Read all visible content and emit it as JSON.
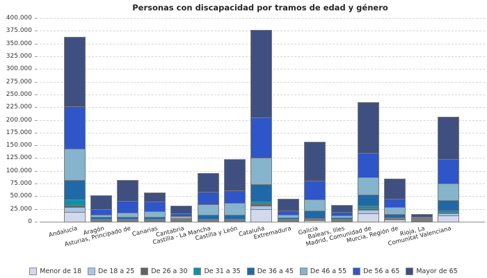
{
  "chart_data": {
    "type": "bar",
    "stacked": true,
    "title": "Personas con discapacidad por tramos de edad y género",
    "xlabel": "",
    "ylabel": "",
    "legend_position": "bottom",
    "grid": "horizontal-dashed",
    "y_axis": {
      "min": 0,
      "max": 400000,
      "step": 25000,
      "tick_labels": [
        "0",
        "25.000",
        "50.000",
        "75.000",
        "100.000",
        "125.000",
        "150.000",
        "175.000",
        "200.000",
        "225.000",
        "250.000",
        "275.000",
        "300.000",
        "325.000",
        "350.000",
        "375.000",
        "400.000"
      ]
    },
    "categories": [
      "Andalucía",
      "Aragón",
      "Asturias, Principado de",
      "Canarias",
      "Cantabria",
      "Castilla - La Mancha",
      "Castilla y León",
      "Cataluña",
      "Extremadura",
      "Galicia",
      "Balears, Illes",
      "Madrid, Comunidad de",
      "Murcia, Región de",
      "Rioja, La",
      "Comunitat Valenciana"
    ],
    "series": [
      {
        "name": "Menor de 18",
        "color": "#d3d9ed",
        "values": [
          21000,
          3000,
          2700,
          3200,
          1400,
          3000,
          2500,
          26000,
          1400,
          3500,
          1000,
          18000,
          5000,
          800,
          13200
        ]
      },
      {
        "name": "De 18 a 25",
        "color": "#a8c6e8",
        "values": [
          11000,
          3000,
          2300,
          2700,
          1300,
          3000,
          2500,
          8000,
          1800,
          2500,
          1300,
          8000,
          3200,
          800,
          5500
        ]
      },
      {
        "name": "De 26 a 30",
        "color": "#5f6466",
        "values": [
          5500,
          2500,
          1800,
          2300,
          1400,
          2000,
          2800,
          5000,
          1400,
          2500,
          1400,
          4500,
          2300,
          800,
          3100
        ]
      },
      {
        "name": "De 31 a 35",
        "color": "#1191a8",
        "values": [
          11500,
          2500,
          2200,
          2300,
          1800,
          2500,
          3200,
          6500,
          1800,
          3500,
          1800,
          6000,
          3200,
          800,
          5100
        ]
      },
      {
        "name": "De 36 a 45",
        "color": "#2069a9",
        "values": [
          40000,
          5000,
          5000,
          4900,
          2700,
          8500,
          9500,
          34500,
          4100,
          16500,
          3600,
          23500,
          7700,
          1400,
          22700
        ]
      },
      {
        "name": "De 46 a 55",
        "color": "#86b4cc",
        "values": [
          62500,
          5500,
          10600,
          12900,
          5100,
          23000,
          23500,
          54000,
          7200,
          22500,
          6300,
          35500,
          14500,
          1800,
          34100
        ]
      },
      {
        "name": "De 56 a 65",
        "color": "#2f56c8",
        "values": [
          85000,
          12000,
          24100,
          19500,
          7700,
          26000,
          26000,
          81000,
          9200,
          38700,
          8000,
          49000,
          18300,
          2700,
          49200
        ]
      },
      {
        "name": "Mayor de 65",
        "color": "#3f5080",
        "values": [
          137500,
          28500,
          42300,
          20200,
          15600,
          37000,
          63000,
          173000,
          25100,
          78300,
          15200,
          102000,
          41300,
          6900,
          84100
        ]
      }
    ]
  }
}
